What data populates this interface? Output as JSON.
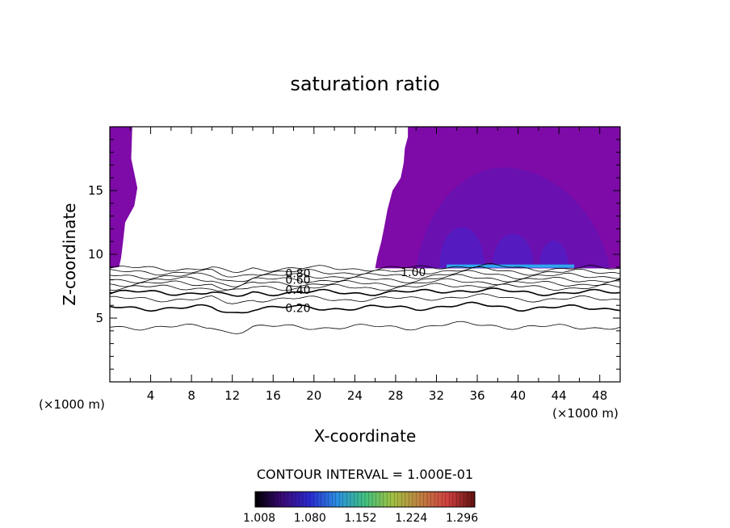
{
  "chart_data": {
    "type": "contour",
    "title": "saturation ratio",
    "xlabel": "X-coordinate",
    "ylabel": "Z-coordinate",
    "x_unit_left": "(×1000 m)",
    "x_unit_right": "(×1000 m)",
    "xlim": [
      0,
      50
    ],
    "ylim": [
      0,
      20
    ],
    "x_ticks": [
      4,
      8,
      12,
      16,
      20,
      24,
      28,
      32,
      36,
      40,
      44,
      48
    ],
    "y_ticks": [
      5,
      10,
      15
    ],
    "contour_interval_text": "CONTOUR INTERVAL = 1.000E-01",
    "contour_labels": [
      {
        "text": "0.80",
        "x": 17.2,
        "z": 8.5
      },
      {
        "text": "0.60",
        "x": 17.2,
        "z": 8.0
      },
      {
        "text": "0.40",
        "x": 17.2,
        "z": 7.2
      },
      {
        "text": "0.20",
        "x": 17.2,
        "z": 5.8
      },
      {
        "text": "1.00",
        "x": 28.5,
        "z": 8.6
      }
    ],
    "colorbar": {
      "min": 1.008,
      "max": 1.32,
      "tick_labels": [
        "1.008",
        "1.080",
        "1.152",
        "1.224",
        "1.296"
      ],
      "colors": [
        "#000000",
        "#3a0a78",
        "#2a2ad0",
        "#2a90e0",
        "#40c080",
        "#a0c040",
        "#c08040",
        "#d04040",
        "#601010"
      ]
    },
    "fill_colors": {
      "low_supersaturation": "#7e0aa8",
      "mid_supersaturation": "#5a16b8",
      "high_supersaturation": "#4a22cc",
      "peak": "#2fa8ee"
    }
  }
}
